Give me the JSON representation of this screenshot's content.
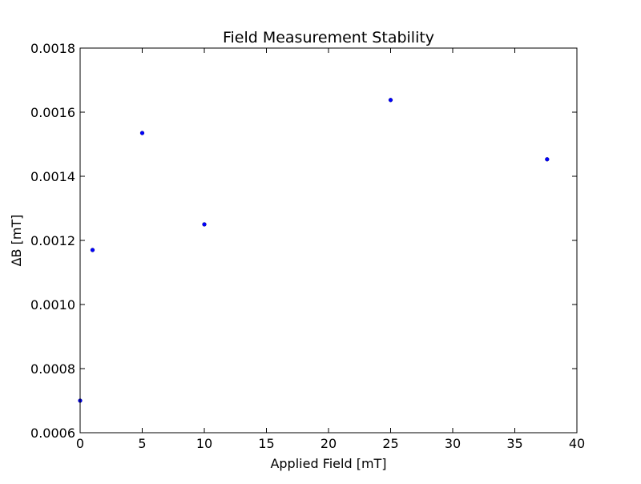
{
  "chart_data": {
    "type": "scatter",
    "title": "Field Measurement Stability",
    "xlabel": "Applied Field [mT]",
    "ylabel": "ΔB [mT]",
    "xlim": [
      0,
      40
    ],
    "ylim": [
      0.0006,
      0.0018
    ],
    "xticks": [
      0,
      5,
      10,
      15,
      20,
      25,
      30,
      35,
      40
    ],
    "xtick_labels": [
      "0",
      "5",
      "10",
      "15",
      "20",
      "25",
      "30",
      "35",
      "40"
    ],
    "yticks": [
      0.0006,
      0.0008,
      0.001,
      0.0012,
      0.0014,
      0.0016,
      0.0018
    ],
    "ytick_labels": [
      "0.0006",
      "0.0008",
      "0.0010",
      "0.0012",
      "0.0014",
      "0.0016",
      "0.0018"
    ],
    "grid": false,
    "series": [
      {
        "color": "#0000ff",
        "marker": "circle",
        "points": [
          {
            "x": 0,
            "y": 0.0007
          },
          {
            "x": 1,
            "y": 0.00117
          },
          {
            "x": 5,
            "y": 0.001535
          },
          {
            "x": 10,
            "y": 0.00125
          },
          {
            "x": 25,
            "y": 0.001638
          },
          {
            "x": 37.6,
            "y": 0.001453
          }
        ]
      }
    ]
  }
}
